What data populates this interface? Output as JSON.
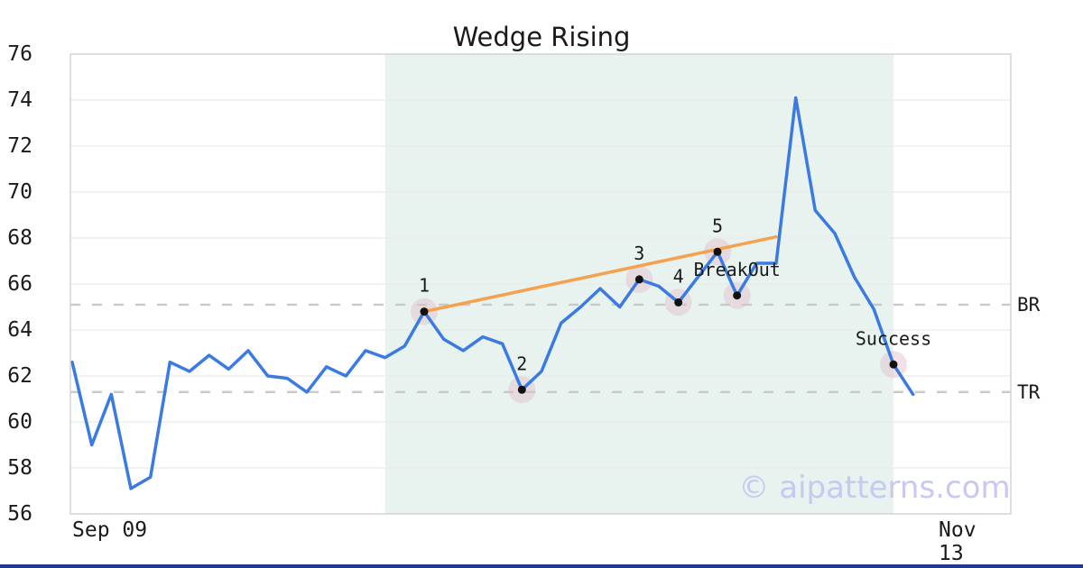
{
  "chart_data": {
    "type": "line",
    "title": "Wedge Rising",
    "pattern_name": "Wedge Rising",
    "ylim": [
      56,
      76
    ],
    "y_ticks": [
      76,
      74,
      72,
      70,
      68,
      66,
      64,
      62,
      60,
      58,
      56
    ],
    "x_axis": {
      "start_label": "Sep 09",
      "end_label": "Nov 13",
      "domain_slots": 48
    },
    "grid": "horizontal-only",
    "series": [
      {
        "name": "price",
        "values": [
          62.6,
          59.0,
          61.2,
          57.1,
          57.6,
          62.6,
          62.2,
          62.9,
          62.3,
          63.1,
          62.0,
          61.9,
          61.3,
          62.4,
          62.0,
          63.1,
          62.8,
          63.3,
          64.8,
          63.6,
          63.1,
          63.7,
          63.4,
          61.4,
          62.2,
          64.3,
          65.0,
          65.8,
          65.0,
          66.2,
          65.9,
          65.2,
          66.3,
          67.4,
          65.5,
          66.9,
          66.9,
          74.1,
          69.2,
          68.2,
          66.3,
          64.9,
          62.5,
          61.2
        ]
      }
    ],
    "markers": [
      {
        "index": 18,
        "label": "1"
      },
      {
        "index": 23,
        "label": "2"
      },
      {
        "index": 29,
        "label": "3"
      },
      {
        "index": 31,
        "label": "4"
      },
      {
        "index": 33,
        "label": "5"
      },
      {
        "index": 34,
        "label": "BreakOut"
      },
      {
        "index": 42,
        "label": "Success"
      }
    ],
    "levels": [
      {
        "label": "BR",
        "value": 65.1
      },
      {
        "label": "TR",
        "value": 61.3
      }
    ],
    "trendline": {
      "from_index": 18,
      "from_value": 64.8,
      "to_index": 36,
      "to_value": 68.05
    },
    "shaded_region": {
      "from_index": 16,
      "to_index": 42
    },
    "colors": {
      "line": "#3b7ae2",
      "trendline": "#f6a14d",
      "shade": "#e8f3ef",
      "halo": "#e3bfcd",
      "dot": "#111111",
      "level_dash": "#c9c9c9",
      "grid": "#e9e9e9",
      "border": "#d4d4d4",
      "text": "#1a1a1a"
    }
  },
  "watermark": {
    "text": "© aipatterns.com",
    "color": "#c6c9f1"
  },
  "footer_bar": {
    "color": "#1e3a8a"
  }
}
